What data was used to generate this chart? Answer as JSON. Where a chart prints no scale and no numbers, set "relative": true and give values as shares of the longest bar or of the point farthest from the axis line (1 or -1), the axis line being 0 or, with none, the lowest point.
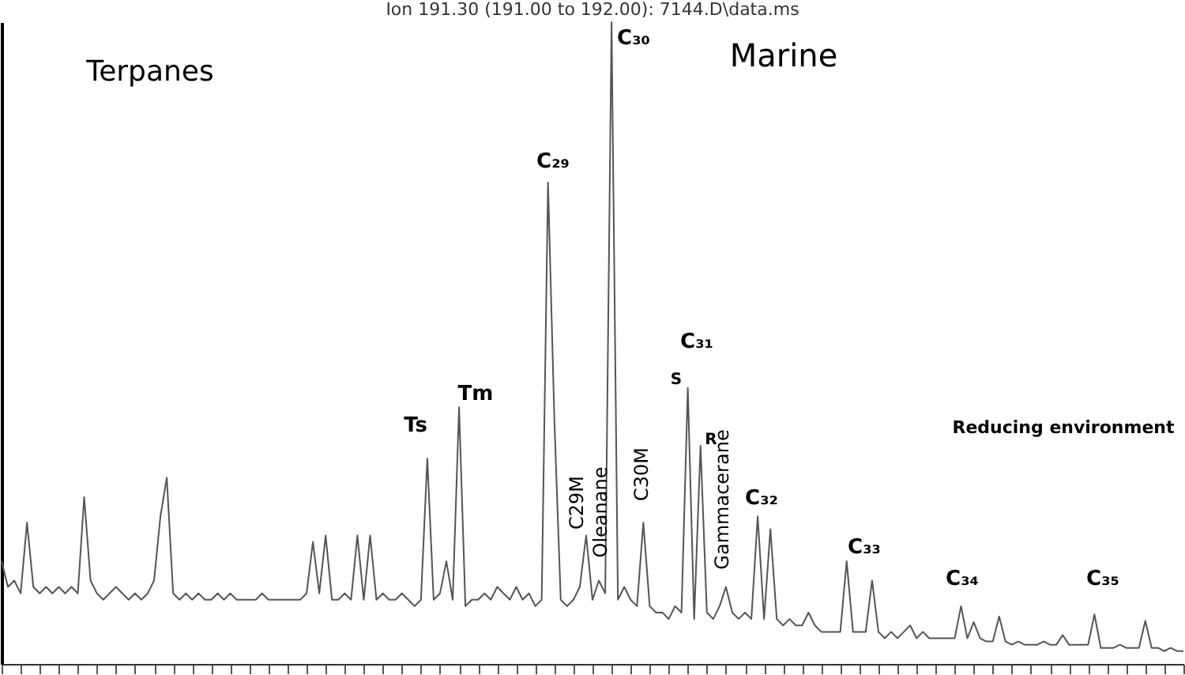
{
  "chart_data": {
    "type": "line",
    "title": "Ion 191.30 (191.00 to 192.00): 7144.D\\data.ms",
    "relative": true,
    "categories": [
      null,
      null,
      null,
      null,
      null,
      null,
      null,
      null,
      null,
      null,
      null,
      null,
      null,
      null,
      null,
      null,
      null,
      null,
      null,
      null,
      null,
      null,
      null,
      null,
      null,
      null,
      null,
      null,
      null,
      null,
      null,
      null,
      null,
      null,
      null,
      null,
      null,
      null,
      null,
      null,
      null,
      null,
      null,
      null,
      null,
      null,
      null,
      null,
      null,
      null,
      null,
      null,
      null,
      null,
      null,
      null,
      null,
      null,
      null,
      null,
      null,
      null,
      null,
      null,
      null,
      null,
      null,
      null,
      null,
      null,
      null,
      null,
      null,
      null,
      null,
      null,
      null,
      null,
      null,
      null,
      null,
      null,
      null,
      null,
      null,
      null,
      null,
      null,
      null,
      null,
      null,
      null,
      null,
      null,
      null,
      null,
      null,
      null,
      null,
      null,
      null,
      null,
      null,
      null,
      null,
      null,
      null,
      null,
      null,
      null,
      null,
      null,
      null,
      null,
      null,
      null,
      null,
      null,
      null,
      null,
      null,
      null,
      null,
      null,
      null,
      null,
      null,
      null,
      null,
      null,
      null,
      null,
      null,
      null,
      null,
      null,
      null,
      null,
      null,
      null,
      null,
      null,
      null,
      null,
      null,
      null,
      null,
      null,
      null,
      null,
      null,
      null,
      null,
      null,
      null,
      null,
      null,
      null,
      null,
      null,
      null,
      null,
      null,
      null,
      null,
      null,
      null,
      null,
      null,
      null,
      null,
      null,
      null,
      null,
      null,
      null,
      null,
      null,
      null,
      null,
      null,
      null,
      null,
      null,
      null,
      null,
      null
    ],
    "series": [
      {
        "color": "#555555",
        "values": [
          0.16,
          0.12,
          0.13,
          0.11,
          0.22,
          0.12,
          0.11,
          0.12,
          0.11,
          0.12,
          0.11,
          0.12,
          0.11,
          0.26,
          0.13,
          0.11,
          0.1,
          0.11,
          0.12,
          0.11,
          0.1,
          0.11,
          0.1,
          0.11,
          0.13,
          0.23,
          0.29,
          0.11,
          0.1,
          0.11,
          0.1,
          0.11,
          0.1,
          0.1,
          0.11,
          0.1,
          0.11,
          0.1,
          0.1,
          0.1,
          0.1,
          0.11,
          0.1,
          0.1,
          0.1,
          0.1,
          0.1,
          0.1,
          0.11,
          0.19,
          0.11,
          0.2,
          0.1,
          0.1,
          0.11,
          0.1,
          0.2,
          0.1,
          0.2,
          0.1,
          0.11,
          0.1,
          0.1,
          0.11,
          0.1,
          0.09,
          0.1,
          0.32,
          0.1,
          0.11,
          0.16,
          0.1,
          0.4,
          0.09,
          0.1,
          0.1,
          0.11,
          0.1,
          0.12,
          0.11,
          0.1,
          0.12,
          0.1,
          0.11,
          0.09,
          0.1,
          0.75,
          0.38,
          0.1,
          0.09,
          0.1,
          0.12,
          0.2,
          0.1,
          0.13,
          0.11,
          1,
          0.1,
          0.12,
          0.1,
          0.09,
          0.22,
          0.09,
          0.08,
          0.08,
          0.07,
          0.09,
          0.08,
          0.43,
          0.07,
          0.34,
          0.08,
          0.07,
          0.09,
          0.12,
          0.08,
          0.07,
          0.08,
          0.07,
          0.23,
          0.07,
          0.21,
          0.07,
          0.06,
          0.07,
          0.06,
          0.06,
          0.08,
          0.06,
          0.05,
          0.05,
          0.05,
          0.05,
          0.16,
          0.05,
          0.05,
          0.05,
          0.13,
          0.05,
          0.04,
          0.05,
          0.04,
          0.05,
          0.06,
          0.04,
          0.05,
          0.04,
          0.04,
          0.04,
          0.04,
          0.04,
          0.09,
          0.04,
          0.065,
          0.04,
          0.035,
          0.035,
          0.074,
          0.035,
          0.03,
          0.035,
          0.03,
          0.03,
          0.03,
          0.035,
          0.03,
          0.03,
          0.045,
          0.03,
          0.03,
          0.03,
          0.03,
          0.077,
          0.025,
          0.025,
          0.025,
          0.03,
          0.025,
          0.025,
          0.025,
          0.067,
          0.025,
          0.025,
          0.02,
          0.025,
          0.02,
          0.02
        ]
      }
    ],
    "annotations": [
      "Terpanes",
      "Marine",
      "C₃₀",
      "C₂₉",
      "Tm",
      "Ts",
      "C29M",
      "Oleanane",
      "C30M",
      "C₃₁",
      "S",
      "R",
      "Gammacerane",
      "C₃₂",
      "C₃₃",
      "C₃₄",
      "C₃₅",
      "Reducing environment"
    ],
    "grid": false,
    "legend": false,
    "tick_labels": false,
    "marker": "none",
    "line_style": "solid"
  }
}
